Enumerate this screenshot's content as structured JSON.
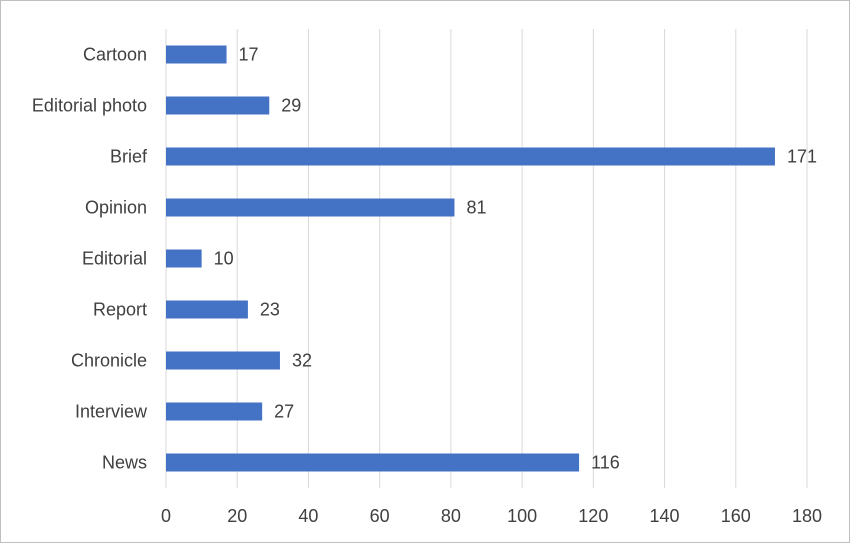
{
  "chart_data": {
    "type": "bar",
    "orientation": "horizontal",
    "categories": [
      "Cartoon",
      "Editorial photo",
      "Brief",
      "Opinion",
      "Editorial",
      "Report",
      "Chronicle",
      "Interview",
      "News"
    ],
    "values": [
      17,
      29,
      171,
      81,
      10,
      23,
      32,
      27,
      116
    ],
    "data_labels": [
      "17",
      "29",
      "171",
      "81",
      "10",
      "23",
      "32",
      "27",
      "116"
    ],
    "xlim": [
      0,
      180
    ],
    "x_ticks": [
      0,
      20,
      40,
      60,
      80,
      100,
      120,
      140,
      160,
      180
    ],
    "x_tick_labels": [
      "0",
      "20",
      "40",
      "60",
      "80",
      "100",
      "120",
      "140",
      "160",
      "180"
    ],
    "title": "",
    "xlabel": "",
    "ylabel": "",
    "grid": "vertical",
    "legend": "none",
    "bar_color": "#4472c4",
    "grid_color": "#d9d9d9",
    "text_color": "#404040"
  }
}
